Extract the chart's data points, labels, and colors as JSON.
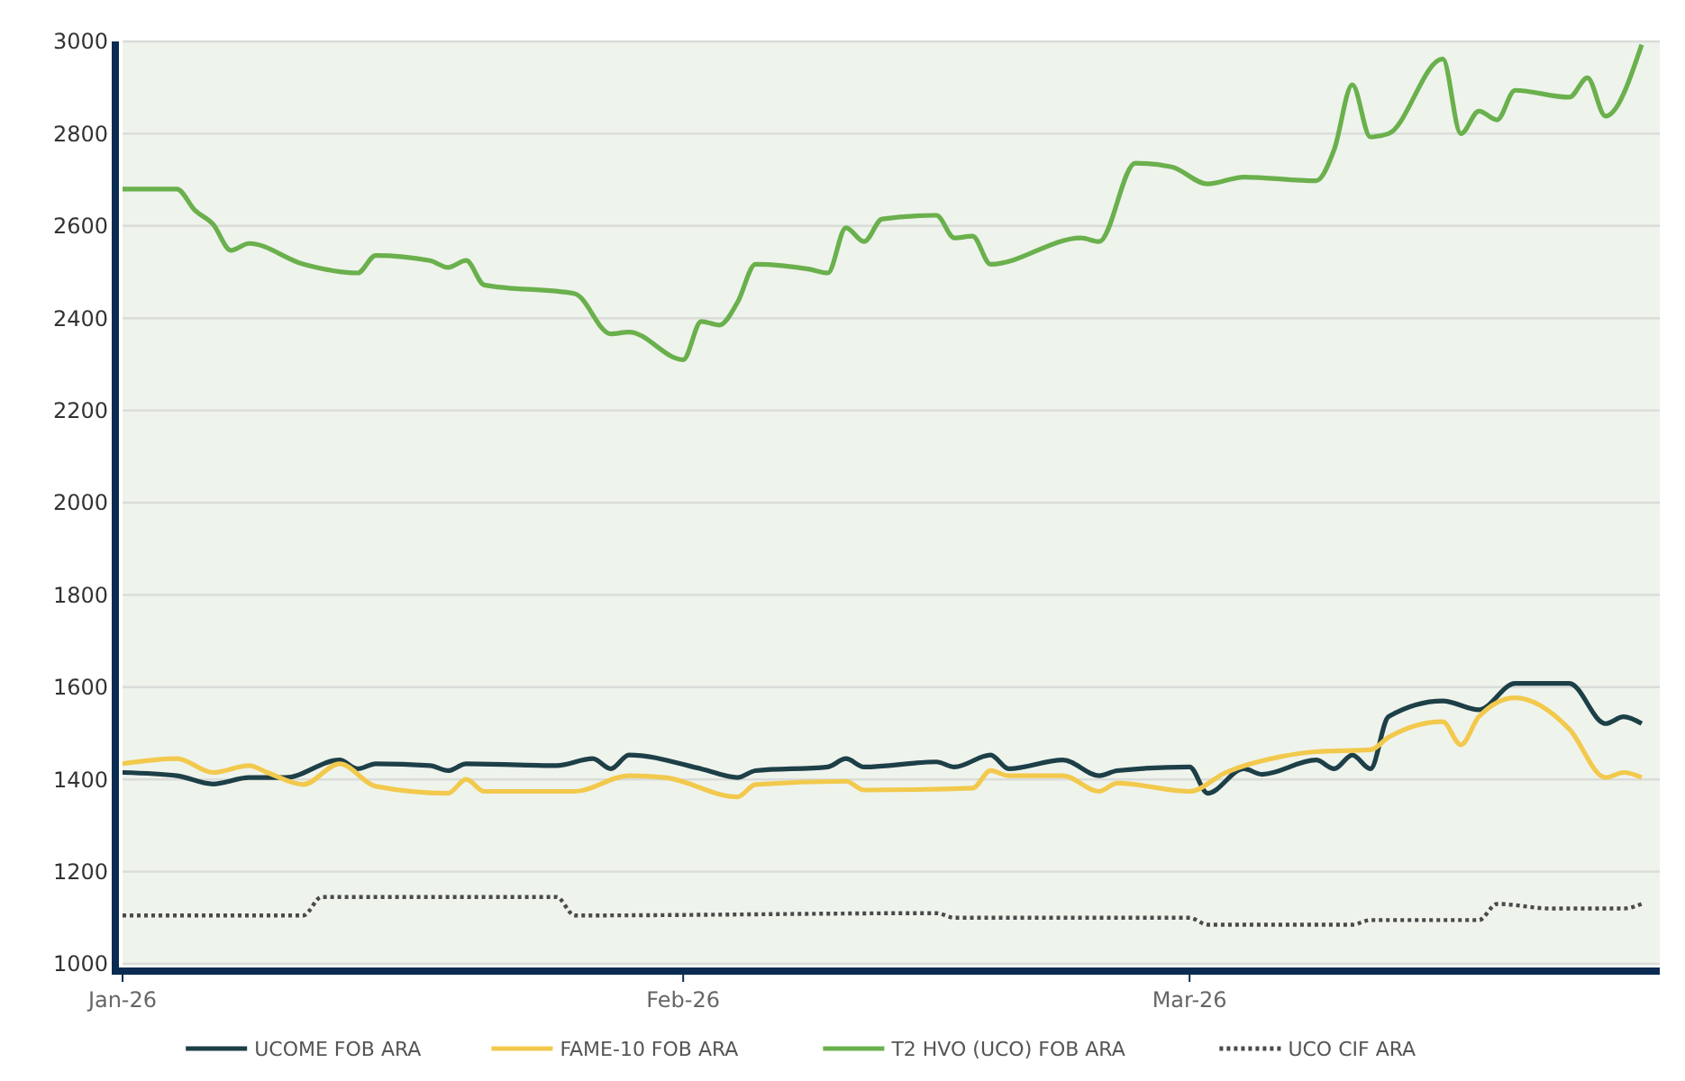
{
  "chart_data": {
    "type": "line",
    "xlim": [
      "2026-01-01",
      "2026-03-27"
    ],
    "xticks": [
      {
        "value": "2026-01-01",
        "label": "Jan-26"
      },
      {
        "value": "2026-02-01",
        "label": "Feb-26"
      },
      {
        "value": "2026-03-01",
        "label": "Mar-26"
      }
    ],
    "ylim": [
      1000,
      3000
    ],
    "yticks": [
      1000,
      1200,
      1400,
      1600,
      1800,
      2000,
      2200,
      2400,
      2600,
      2800,
      3000
    ],
    "grid": "y",
    "legend": "bottom",
    "marker": "none",
    "series": [
      {
        "name": "UCOME FOB ARA",
        "color": "#1d3f47",
        "line_style": "solid",
        "x": [
          "2026-01-01",
          "2026-01-04",
          "2026-01-06",
          "2026-01-08",
          "2026-01-10",
          "2026-01-13",
          "2026-01-14",
          "2026-01-15",
          "2026-01-18",
          "2026-01-19",
          "2026-01-20",
          "2026-01-25",
          "2026-01-27",
          "2026-01-28",
          "2026-01-29",
          "2026-02-02",
          "2026-02-04",
          "2026-02-05",
          "2026-02-09",
          "2026-02-10",
          "2026-02-11",
          "2026-02-15",
          "2026-02-16",
          "2026-02-18",
          "2026-02-19",
          "2026-02-22",
          "2026-02-24",
          "2026-02-25",
          "2026-03-01",
          "2026-03-02",
          "2026-03-04",
          "2026-03-05",
          "2026-03-08",
          "2026-03-09",
          "2026-03-10",
          "2026-03-11",
          "2026-03-12",
          "2026-03-15",
          "2026-03-17",
          "2026-03-19",
          "2026-03-22",
          "2026-03-24",
          "2026-03-25",
          "2026-03-26"
        ],
        "values": [
          1415,
          1408,
          1390,
          1404,
          1404,
          1442,
          1423,
          1434,
          1430,
          1419,
          1434,
          1430,
          1445,
          1423,
          1453,
          1423,
          1404,
          1419,
          1427,
          1445,
          1427,
          1438,
          1427,
          1453,
          1423,
          1442,
          1408,
          1419,
          1427,
          1370,
          1423,
          1411,
          1442,
          1423,
          1453,
          1423,
          1536,
          1570,
          1551,
          1608,
          1608,
          1521,
          1536,
          1521
        ]
      },
      {
        "name": "FAME-10 FOB ARA",
        "color": "#f2c94c",
        "line_style": "solid",
        "x": [
          "2026-01-01",
          "2026-01-04",
          "2026-01-06",
          "2026-01-08",
          "2026-01-09",
          "2026-01-11",
          "2026-01-13",
          "2026-01-15",
          "2026-01-19",
          "2026-01-20",
          "2026-01-21",
          "2026-01-26",
          "2026-01-29",
          "2026-01-31",
          "2026-02-04",
          "2026-02-05",
          "2026-02-10",
          "2026-02-11",
          "2026-02-17",
          "2026-02-18",
          "2026-02-19",
          "2026-02-22",
          "2026-02-24",
          "2026-02-25",
          "2026-03-01",
          "2026-03-03",
          "2026-03-06",
          "2026-03-08",
          "2026-03-11",
          "2026-03-12",
          "2026-03-15",
          "2026-03-16",
          "2026-03-17",
          "2026-03-19",
          "2026-03-22",
          "2026-03-24",
          "2026-03-25",
          "2026-03-26"
        ],
        "values": [
          1434,
          1445,
          1415,
          1430,
          1415,
          1389,
          1434,
          1385,
          1370,
          1400,
          1374,
          1374,
          1408,
          1404,
          1362,
          1389,
          1396,
          1377,
          1381,
          1419,
          1408,
          1408,
          1374,
          1392,
          1374,
          1415,
          1449,
          1460,
          1464,
          1491,
          1525,
          1475,
          1536,
          1577,
          1509,
          1404,
          1415,
          1404
        ]
      },
      {
        "name": "T2 HVO (UCO) FOB ARA",
        "color": "#6ab04c",
        "line_style": "solid",
        "x": [
          "2026-01-01",
          "2026-01-04",
          "2026-01-05",
          "2026-01-06",
          "2026-01-07",
          "2026-01-08",
          "2026-01-11",
          "2026-01-14",
          "2026-01-15",
          "2026-01-18",
          "2026-01-19",
          "2026-01-20",
          "2026-01-21",
          "2026-01-26",
          "2026-01-28",
          "2026-01-29",
          "2026-02-01",
          "2026-02-02",
          "2026-02-03",
          "2026-02-04",
          "2026-02-05",
          "2026-02-08",
          "2026-02-09",
          "2026-02-10",
          "2026-02-11",
          "2026-02-12",
          "2026-02-15",
          "2026-02-16",
          "2026-02-17",
          "2026-02-18",
          "2026-02-23",
          "2026-02-24",
          "2026-02-26",
          "2026-02-28",
          "2026-03-02",
          "2026-03-04",
          "2026-03-08",
          "2026-03-09",
          "2026-03-10",
          "2026-03-11",
          "2026-03-12",
          "2026-03-15",
          "2026-03-16",
          "2026-03-17",
          "2026-03-18",
          "2026-03-19",
          "2026-03-22",
          "2026-03-23",
          "2026-03-24",
          "2026-03-26"
        ],
        "values": [
          2680,
          2680,
          2634,
          2604,
          2547,
          2562,
          2517,
          2498,
          2536,
          2525,
          2510,
          2525,
          2472,
          2453,
          2366,
          2370,
          2310,
          2393,
          2385,
          2434,
          2517,
          2506,
          2498,
          2596,
          2566,
          2615,
          2623,
          2574,
          2578,
          2517,
          2574,
          2566,
          2736,
          2728,
          2691,
          2706,
          2698,
          2766,
          2906,
          2793,
          2800,
          2962,
          2800,
          2849,
          2830,
          2894,
          2879,
          2921,
          2838,
          2993
        ]
      },
      {
        "name": "UCO CIF ARA",
        "color": "#4a4a4a",
        "line_style": "dotted",
        "x": [
          "2026-01-01",
          "2026-01-11",
          "2026-01-12",
          "2026-01-25",
          "2026-01-26",
          "2026-02-15",
          "2026-02-16",
          "2026-03-01",
          "2026-03-02",
          "2026-03-10",
          "2026-03-11",
          "2026-03-17",
          "2026-03-18",
          "2026-03-21",
          "2026-03-25",
          "2026-03-26"
        ],
        "values": [
          1105,
          1105,
          1145,
          1145,
          1105,
          1110,
          1100,
          1100,
          1085,
          1085,
          1095,
          1095,
          1130,
          1120,
          1120,
          1130
        ]
      }
    ]
  }
}
